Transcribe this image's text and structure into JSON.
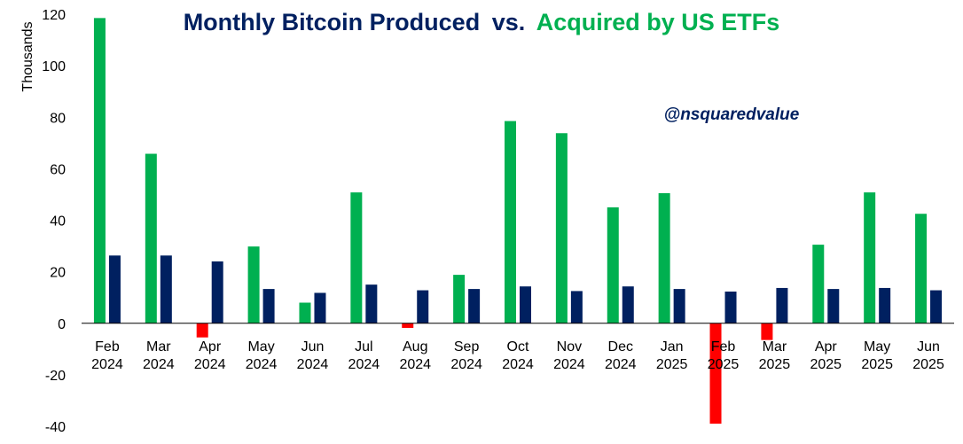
{
  "chart_data": {
    "type": "bar",
    "title_part1": "Monthly Bitcoin Produced",
    "title_part2": "vs.",
    "title_part3": "Acquired by US ETFs",
    "ylabel": "Thousands",
    "watermark": "@nsquaredvalue",
    "ylim": [
      -40,
      120
    ],
    "yticks": [
      -40,
      -20,
      0,
      20,
      40,
      60,
      80,
      100,
      120
    ],
    "grid": false,
    "categories": [
      [
        "Feb",
        "2024"
      ],
      [
        "Mar",
        "2024"
      ],
      [
        "Apr",
        "2024"
      ],
      [
        "May",
        "2024"
      ],
      [
        "Jun",
        "2024"
      ],
      [
        "Jul",
        "2024"
      ],
      [
        "Aug",
        "2024"
      ],
      [
        "Sep",
        "2024"
      ],
      [
        "Oct",
        "2024"
      ],
      [
        "Nov",
        "2024"
      ],
      [
        "Dec",
        "2024"
      ],
      [
        "Jan",
        "2025"
      ],
      [
        "Feb",
        "2025"
      ],
      [
        "Mar",
        "2025"
      ],
      [
        "Apr",
        "2025"
      ],
      [
        "May",
        "2025"
      ],
      [
        "Jun",
        "2025"
      ]
    ],
    "series": [
      {
        "key": "acquired",
        "values": [
          118.5,
          65.8,
          -5.5,
          29.8,
          8.0,
          50.8,
          -1.8,
          18.8,
          78.5,
          73.8,
          45.0,
          50.5,
          -39.0,
          -6.5,
          30.5,
          50.8,
          42.5
        ],
        "color": "#00b050",
        "negative_color": "#ff0000"
      },
      {
        "key": "produced",
        "values": [
          26.3,
          26.3,
          24.0,
          13.3,
          11.8,
          15.0,
          12.8,
          13.3,
          14.3,
          12.5,
          14.3,
          13.3,
          12.3,
          13.7,
          13.3,
          13.7,
          12.8
        ],
        "color": "#002060"
      }
    ]
  },
  "colors": {
    "title_navy": "#002060",
    "title_green": "#00b050",
    "axis": "#000000"
  }
}
